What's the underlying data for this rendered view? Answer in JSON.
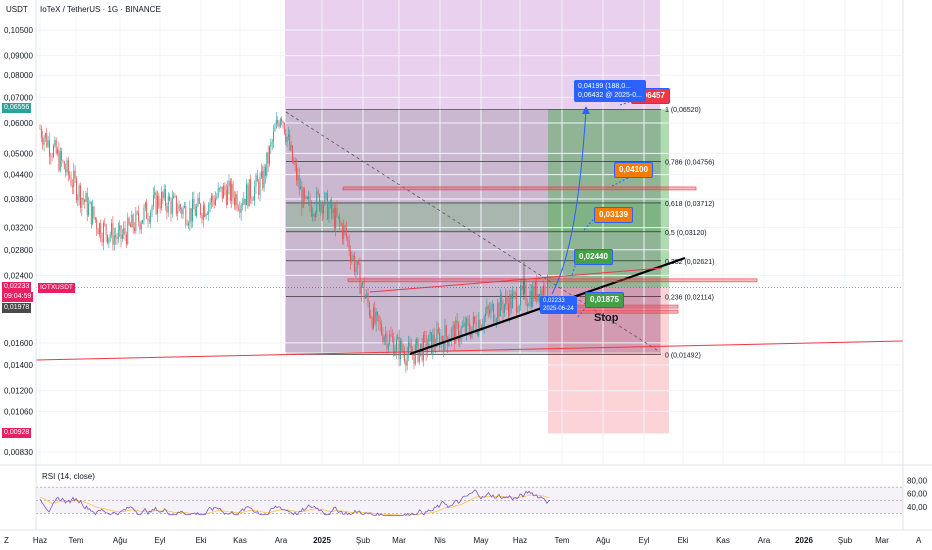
{
  "header": {
    "unit": "USDT",
    "title": "IoTeX / TetherUS · 1G · BINANCE"
  },
  "colors": {
    "up": "#26a69a",
    "down": "#ef5350",
    "accent": "#2962ff",
    "fib_line": "#787b86",
    "red_line": "#f23645",
    "green_zone": "#4caf50",
    "purple_zone": "#9c27b0"
  },
  "price_axis": {
    "labels": [
      "0,10500",
      "0,09000",
      "0,08000",
      "0,07000",
      "0,06000",
      "0,05000",
      "0,04400",
      "0,03800",
      "0,03200",
      "0,02800",
      "0,02400",
      "0,01600",
      "0,01400",
      "0,01200",
      "0,01060",
      "0,00830"
    ],
    "label_values": [
      0.105,
      0.09,
      0.08,
      0.07,
      0.06,
      0.05,
      0.044,
      0.038,
      0.032,
      0.028,
      0.024,
      0.016,
      0.014,
      0.012,
      0.0106,
      0.0083
    ]
  },
  "price_tags": [
    {
      "name": "top-high",
      "text": "0,06556",
      "value": 0.06556,
      "color": "#26a69a"
    },
    {
      "name": "current",
      "text": "0,02233",
      "value": 0.02233,
      "color": "#e91e63"
    },
    {
      "name": "countdown",
      "text": "09:04:59",
      "value": 0.0211,
      "color": "#e91e63"
    },
    {
      "name": "stop",
      "text": "0,01978",
      "value": 0.01978,
      "color": "#4a4a4a"
    },
    {
      "name": "low",
      "text": "0,00928",
      "value": 0.00928,
      "color": "#e91e63"
    }
  ],
  "pair_tag": "IOTXUSDT",
  "time_axis": {
    "labels": [
      "Haz",
      "Tem",
      "Ağu",
      "Eyl",
      "Eki",
      "Kas",
      "Ara",
      "2025",
      "Şub",
      "Mar",
      "Nis",
      "May",
      "Haz",
      "Tem",
      "Ağu",
      "Eyl",
      "Eki",
      "Kas",
      "Ara",
      "2026",
      "Şub",
      "Mar"
    ],
    "corner_left": "Z",
    "corner_right": "A"
  },
  "fib_levels": [
    {
      "ratio": 1,
      "label": "1 (0,06520)",
      "value": 0.0652
    },
    {
      "ratio": 0.786,
      "label": "0,786 (0,04756)",
      "value": 0.04756
    },
    {
      "ratio": 0.618,
      "label": "0,618 (0,03712)",
      "value": 0.03712
    },
    {
      "ratio": 0.5,
      "label": "0,5 (0,03120)",
      "value": 0.0312
    },
    {
      "ratio": 0.382,
      "label": "0,382 (0,02621)",
      "value": 0.02621
    },
    {
      "ratio": 0.236,
      "label": "0,236 (0,02114)",
      "value": 0.02114
    },
    {
      "ratio": 0,
      "label": "0 (0,01492)",
      "value": 0.01492
    }
  ],
  "targets": [
    {
      "text": "0,06457",
      "value": 0.06457,
      "color": "#f23645"
    },
    {
      "text": "0,04100",
      "value": 0.041,
      "color": "#f57c00"
    },
    {
      "text": "0,03139",
      "value": 0.03139,
      "color": "#f57c00"
    },
    {
      "text": "0,02440",
      "value": 0.0244,
      "color": "#43a047"
    },
    {
      "text": "0,01875",
      "value": 0.01875,
      "color": "#43a047"
    }
  ],
  "info_box": {
    "line1": "0,04199 (188,0...",
    "line2": "0,06432 @ 2025-0..."
  },
  "date_box": {
    "price": "0,02233",
    "date": "2025-06-24"
  },
  "stop_label": "Stop",
  "rsi": {
    "label": "RSI (14, close)",
    "axis_labels": [
      "80,00",
      "60,00",
      "40,00"
    ],
    "axis_values": [
      80,
      60,
      40
    ]
  },
  "chart_data": {
    "type": "candlestick",
    "symbol": "IoTeX / TetherUS",
    "interval": "1D",
    "exchange": "BINANCE",
    "price_scale": "log",
    "current_price": 0.02233,
    "price_path": [
      [
        "2024-06",
        0.058
      ],
      [
        "2024-07",
        0.041
      ],
      [
        "2024-08",
        0.033
      ],
      [
        "2024-09",
        0.038
      ],
      [
        "2024-10",
        0.036
      ],
      [
        "2024-11",
        0.038
      ],
      [
        "2024-12-04",
        0.0652
      ],
      [
        "2024-12-20",
        0.041
      ],
      [
        "2025-01",
        0.038
      ],
      [
        "2025-02",
        0.022
      ],
      [
        "2025-03-10",
        0.0149
      ],
      [
        "2025-04",
        0.0175
      ],
      [
        "2025-05",
        0.021
      ],
      [
        "2025-06-24",
        0.02233
      ]
    ],
    "rsi_ylim": [
      20,
      90
    ]
  }
}
